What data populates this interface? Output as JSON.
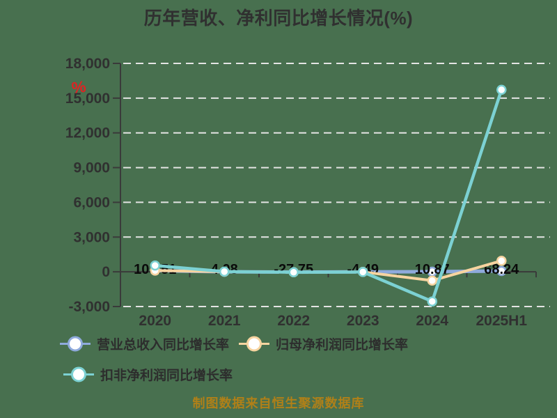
{
  "title": "历年营收、净利同比增长情况(%)",
  "red_mark": "%",
  "footer": {
    "text": "制图数据来自恒生聚源数据库"
  },
  "colors": {
    "background": "#48704F",
    "title_text": "#303030",
    "axis": "#3A3A3A",
    "gridline": "#E4E4E4",
    "tick_text": "#303030",
    "data_label_text": "#0A0A0A",
    "legend_text": "#2D2D2D",
    "footer_text": "#B08018",
    "red_mark": "#E02222",
    "marker_fill": "#FFFFFF",
    "series_revenue": "#8FAADC",
    "series_net_profit": "#F7D4A0",
    "series_deducted_profit": "#7CD1D3"
  },
  "legend": {
    "items": [
      {
        "label": "营业总收入同比增长率",
        "color": "#8FAADC"
      },
      {
        "label": "归母净利润同比增长率",
        "color": "#F7D4A0"
      },
      {
        "label": "扣非净利润同比增长率",
        "color": "#7CD1D3"
      }
    ]
  },
  "chart_data": {
    "type": "line",
    "title": "历年营收、净利同比增长情况(%)",
    "categories": [
      "2020",
      "2021",
      "2022",
      "2023",
      "2024",
      "2025H1"
    ],
    "series": [
      {
        "name": "营业总收入同比增长率",
        "color": "#8FAADC",
        "values": [
          103.51,
          4.08,
          -27.75,
          -4.49,
          10.87,
          68.24
        ],
        "values_source": "labeled on chart"
      },
      {
        "name": "归母净利润同比增长率",
        "color": "#F7D4A0",
        "values": [
          110,
          10,
          -35,
          -10,
          -760,
          950
        ],
        "values_source": "estimated from gridlines"
      },
      {
        "name": "扣非净利润同比增长率",
        "color": "#7CD1D3",
        "values": [
          540,
          15,
          -40,
          -15,
          -2560,
          15720
        ],
        "values_source": "estimated from gridlines"
      }
    ],
    "data_labels": [
      "103.51",
      "4.08",
      "-27.75",
      "-4.49",
      "10.87",
      "68.24"
    ],
    "y_ticks": [
      18000,
      15000,
      12000,
      9000,
      6000,
      3000,
      0,
      -3000
    ],
    "y_tick_labels": [
      "18,000",
      "15,000",
      "12,000",
      "9,000",
      "6,000",
      "3,000",
      "0",
      "-3,000"
    ],
    "ylim": [
      -3000,
      18000
    ],
    "xlabel": "",
    "ylabel": "",
    "grid": "horizontal-dashed",
    "legend_position": "bottom-left-two-rows"
  }
}
